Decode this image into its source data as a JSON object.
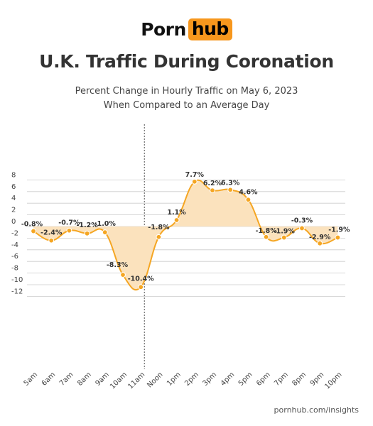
{
  "header": {
    "logo_part1": "Porn",
    "logo_part2": "hub",
    "title": "U.K. Traffic During Coronation",
    "subtitle_line1": "Percent Change in Hourly Traffic on May 6, 2023",
    "subtitle_line2": "When Compared to an Average Day"
  },
  "footer": {
    "source": "pornhub.com/insights"
  },
  "colors": {
    "line": "#f5a623",
    "fill": "#fbe2bd",
    "grid": "#cccccc",
    "text": "#333333",
    "logo_accent": "#f7971d"
  },
  "chart_data": {
    "type": "area",
    "title": "U.K. Traffic During Coronation",
    "subtitle": "Percent Change in Hourly Traffic on May 6, 2023 When Compared to an Average Day",
    "xlabel": "",
    "ylabel": "",
    "categories": [
      "5am",
      "6am",
      "7am",
      "8am",
      "9am",
      "10am",
      "11am",
      "Noon",
      "1pm",
      "2pm",
      "3pm",
      "4pm",
      "5pm",
      "6pm",
      "7pm",
      "8pm",
      "9pm",
      "10pm"
    ],
    "values": [
      -0.8,
      -2.4,
      -0.7,
      -1.2,
      -1.0,
      -8.3,
      -10.4,
      -1.8,
      1.1,
      7.7,
      6.2,
      6.3,
      4.6,
      -1.8,
      -1.9,
      -0.3,
      -2.9,
      -1.9
    ],
    "data_labels": [
      "-0.8%",
      "-2.4%",
      "-0.7%",
      "-1.2%",
      "-1.0%",
      "-8.3%",
      "-10.4%",
      "-1.8%",
      "1.1%",
      "7.7%",
      "6.2%",
      "6.3%",
      "4.6%",
      "-1.8%",
      "-1.9%",
      "-0.3%",
      "-2.9%",
      "-1.9%"
    ],
    "yticks": [
      8,
      6,
      4,
      2,
      0,
      -2,
      -4,
      -6,
      -8,
      -10,
      -12
    ],
    "ylim": [
      -12,
      8
    ],
    "grid": true,
    "annotation": "dotted vertical line between 10am and 11am"
  }
}
